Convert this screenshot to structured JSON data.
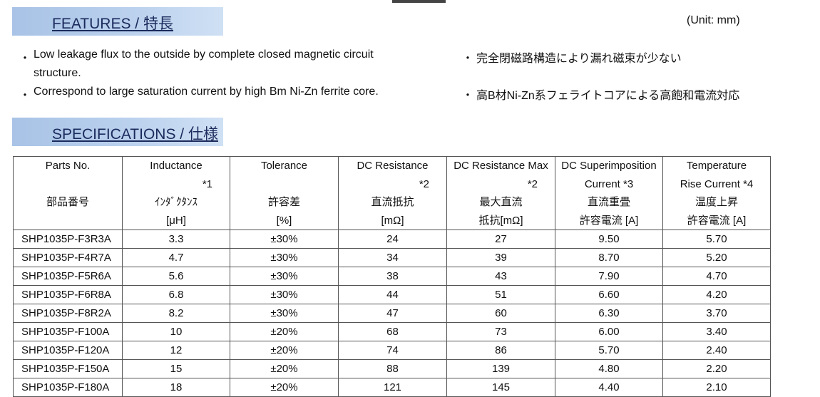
{
  "features": {
    "title": "FEATURES / 特長",
    "unit": "(Unit: mm)",
    "items_en": [
      "Low leakage flux to the outside by complete closed magnetic circuit",
      "structure.",
      "Correspond to large saturation current by high Bm Ni-Zn ferrite core."
    ],
    "items_ja": [
      "完全閉磁路構造により漏れ磁束が少ない",
      "高B材Ni-Zn系フェライトコアによる高飽和電流対応"
    ],
    "bullet": "・"
  },
  "specifications": {
    "title": "SPECIFICATIONS / 仕様"
  },
  "table": {
    "header": [
      [
        "Parts No.",
        null,
        "部品番号",
        null
      ],
      [
        "Inductance",
        "*1",
        "ｲﾝﾀﾞｸﾀﾝｽ",
        "[μH]"
      ],
      [
        "Tolerance",
        null,
        "許容差",
        "[%]"
      ],
      [
        "DC Resistance",
        "*2",
        "直流抵抗",
        "[mΩ]"
      ],
      [
        "DC Resistance Max",
        "*2",
        "最大直流",
        "抵抗[mΩ]"
      ],
      [
        "DC Superimposition",
        "Current *3",
        "直流重畳",
        "許容電流 [A]"
      ],
      [
        "Temperature",
        "Rise Current *4",
        "温度上昇",
        "許容電流 [A]"
      ]
    ],
    "rows": [
      [
        "SHP1035P-F3R3A",
        "3.3",
        "±30%",
        "24",
        "27",
        "9.50",
        "5.70"
      ],
      [
        "SHP1035P-F4R7A",
        "4.7",
        "±30%",
        "34",
        "39",
        "8.70",
        "5.20"
      ],
      [
        "SHP1035P-F5R6A",
        "5.6",
        "±30%",
        "38",
        "43",
        "7.90",
        "4.70"
      ],
      [
        "SHP1035P-F6R8A",
        "6.8",
        "±30%",
        "44",
        "51",
        "6.60",
        "4.20"
      ],
      [
        "SHP1035P-F8R2A",
        "8.2",
        "±30%",
        "47",
        "60",
        "6.30",
        "3.70"
      ],
      [
        "SHP1035P-F100A",
        "10",
        "±20%",
        "68",
        "73",
        "6.00",
        "3.40"
      ],
      [
        "SHP1035P-F120A",
        "12",
        "±20%",
        "74",
        "86",
        "5.70",
        "2.40"
      ],
      [
        "SHP1035P-F150A",
        "15",
        "±20%",
        "88",
        "139",
        "4.80",
        "2.20"
      ],
      [
        "SHP1035P-F180A",
        "18",
        "±20%",
        "121",
        "145",
        "4.40",
        "2.10"
      ]
    ]
  }
}
